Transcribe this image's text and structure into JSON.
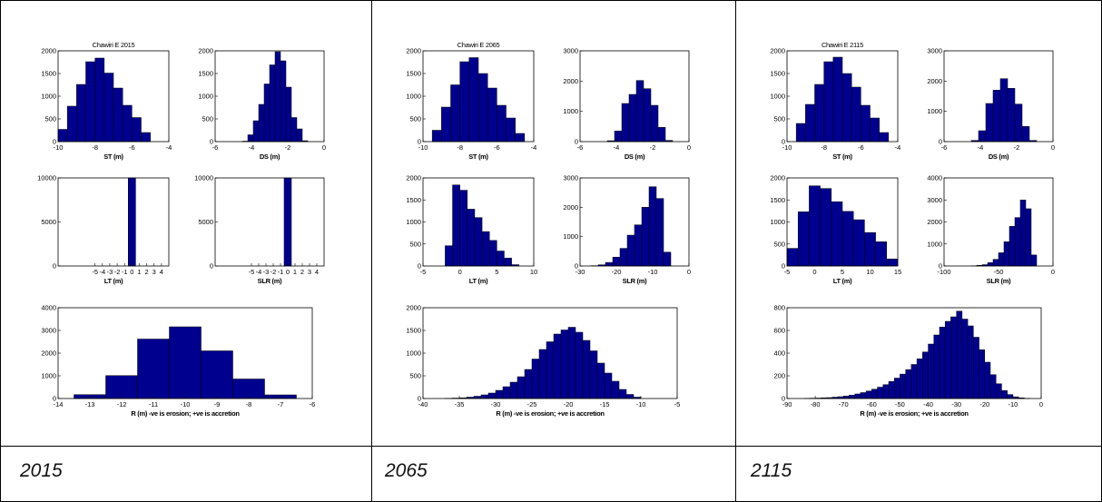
{
  "colors": {
    "bar_fill": "#00008f",
    "bar_stroke": "#000000",
    "axis": "#000000"
  },
  "captions": [
    "2015",
    "2065",
    "2115"
  ],
  "chart_data": [
    {
      "type": "bar",
      "title": "Chawiri E 2015",
      "xlabel": "ST (m)",
      "ylabel": "",
      "xlim": [
        -10,
        -4
      ],
      "ylim": [
        0,
        2000
      ],
      "xticks": [
        -10,
        -8,
        -6,
        -4
      ],
      "yticks": [
        0,
        500,
        1000,
        1500,
        2000
      ],
      "bin_edges": [
        -10,
        -9.5,
        -9,
        -8.5,
        -8,
        -7.5,
        -7,
        -6.5,
        -6,
        -5.5,
        -5
      ],
      "values": [
        270,
        780,
        1260,
        1760,
        1840,
        1510,
        1180,
        800,
        530,
        200
      ]
    },
    {
      "type": "bar",
      "title": "",
      "xlabel": "DS (m)",
      "ylabel": "",
      "xlim": [
        -6,
        0
      ],
      "ylim": [
        0,
        2000
      ],
      "xticks": [
        -6,
        -4,
        -2,
        0
      ],
      "yticks": [
        0,
        500,
        1000,
        1500,
        2000
      ],
      "bin_edges": [
        -4.5,
        -4.2,
        -3.9,
        -3.6,
        -3.3,
        -3,
        -2.7,
        -2.4,
        -2.1,
        -1.8,
        -1.5,
        -1.2,
        -0.9
      ],
      "values": [
        10,
        150,
        460,
        820,
        1270,
        1690,
        1980,
        1780,
        1200,
        530,
        280,
        20
      ]
    },
    {
      "type": "bar",
      "title": "",
      "xlabel": "LT (m)",
      "ylabel": "",
      "xlim": [
        -10,
        5
      ],
      "ylim": [
        0,
        10000
      ],
      "xticks": [
        -5,
        -4,
        -3,
        -2,
        -1,
        0,
        1,
        2,
        3,
        4
      ],
      "yticks": [
        0,
        5000,
        10000
      ],
      "tick_labels": [
        "-5",
        "-4",
        "-3",
        "-2",
        "-1",
        "0",
        "1",
        "2",
        "3",
        "4"
      ],
      "bin_edges": [
        -0.5,
        0.5
      ],
      "values": [
        10000
      ]
    },
    {
      "type": "bar",
      "title": "",
      "xlabel": "SLR (m)",
      "ylabel": "",
      "xlim": [
        -10,
        5
      ],
      "ylim": [
        0,
        10000
      ],
      "xticks": [
        -5,
        -4,
        -3,
        -2,
        -1,
        0,
        1,
        2,
        3,
        4
      ],
      "yticks": [
        0,
        5000,
        10000
      ],
      "tick_labels": [
        "-5",
        "-4",
        "-3",
        "-2",
        "-1",
        "0",
        "1",
        "2",
        "3",
        "4"
      ],
      "bin_edges": [
        -0.5,
        0.5
      ],
      "values": [
        10000
      ]
    },
    {
      "type": "bar",
      "title": "",
      "xlabel": "R (m) -ve is erosion; +ve is accretion",
      "ylabel": "",
      "xlim": [
        -14,
        -6
      ],
      "ylim": [
        0,
        4000
      ],
      "xticks": [
        -14,
        -13,
        -12,
        -11,
        -10,
        -9,
        -8,
        -7,
        -6
      ],
      "yticks": [
        0,
        1000,
        2000,
        3000,
        4000
      ],
      "bin_edges": [
        -13.5,
        -12.5,
        -11.5,
        -10.5,
        -9.5,
        -8.5,
        -7.5,
        -6.5
      ],
      "values": [
        170,
        1010,
        2620,
        3160,
        2100,
        860,
        160
      ]
    },
    {
      "type": "bar",
      "title": "Chawiri E 2065",
      "xlabel": "ST (m)",
      "ylabel": "",
      "xlim": [
        -10,
        -4
      ],
      "ylim": [
        0,
        2000
      ],
      "xticks": [
        -10,
        -8,
        -6,
        -4
      ],
      "yticks": [
        0,
        500,
        1000,
        1500,
        2000
      ],
      "bin_edges": [
        -9.5,
        -9,
        -8.5,
        -8,
        -7.5,
        -7,
        -6.5,
        -6,
        -5.5,
        -5,
        -4.5
      ],
      "values": [
        250,
        760,
        1250,
        1760,
        1850,
        1500,
        1180,
        800,
        520,
        180
      ]
    },
    {
      "type": "bar",
      "title": "",
      "xlabel": "DS (m)",
      "ylabel": "",
      "xlim": [
        -6,
        0
      ],
      "ylim": [
        0,
        3000
      ],
      "xticks": [
        -6,
        -4,
        -2,
        0
      ],
      "yticks": [
        0,
        1000,
        2000,
        3000
      ],
      "bin_edges": [
        -4.5,
        -4.1,
        -3.7,
        -3.3,
        -2.9,
        -2.5,
        -2.1,
        -1.7,
        -1.3,
        -0.9
      ],
      "values": [
        30,
        350,
        1260,
        1560,
        2020,
        1750,
        1200,
        470,
        40
      ]
    },
    {
      "type": "bar",
      "title": "",
      "xlabel": "LT (m)",
      "ylabel": "",
      "xlim": [
        -5,
        10
      ],
      "ylim": [
        0,
        2000
      ],
      "xticks": [
        -5,
        0,
        5,
        10
      ],
      "yticks": [
        0,
        500,
        1000,
        1500,
        2000
      ],
      "bin_edges": [
        -2,
        -1,
        0,
        1,
        2,
        3,
        4,
        5,
        6,
        7,
        8
      ],
      "values": [
        460,
        1840,
        1720,
        1290,
        1100,
        780,
        580,
        340,
        180,
        30
      ]
    },
    {
      "type": "bar",
      "title": "",
      "xlabel": "SLR (m)",
      "ylabel": "",
      "xlim": [
        -30,
        0
      ],
      "ylim": [
        0,
        3000
      ],
      "xticks": [
        -30,
        -20,
        -10,
        0
      ],
      "yticks": [
        0,
        1000,
        2000,
        3000
      ],
      "bin_edges": [
        -27,
        -25,
        -23,
        -21,
        -19,
        -17,
        -15,
        -13,
        -11,
        -9,
        -7,
        -5
      ],
      "values": [
        10,
        40,
        120,
        300,
        600,
        1050,
        1400,
        2000,
        2700,
        2300,
        470
      ]
    },
    {
      "type": "bar",
      "title": "",
      "xlabel": "R (m) -ve is erosion; +ve is accretion",
      "ylabel": "",
      "xlim": [
        -40,
        -5
      ],
      "ylim": [
        0,
        2000
      ],
      "xticks": [
        -40,
        -35,
        -30,
        -25,
        -20,
        -15,
        -10,
        -5
      ],
      "yticks": [
        0,
        500,
        1000,
        1500,
        2000
      ],
      "bin_edges": [
        -37,
        -36,
        -35,
        -34,
        -33,
        -32,
        -31,
        -30,
        -29,
        -28,
        -27,
        -26,
        -25,
        -24,
        -23,
        -22,
        -21,
        -20,
        -19,
        -18,
        -17,
        -16,
        -15,
        -14,
        -13,
        -12,
        -11,
        -10
      ],
      "values": [
        5,
        10,
        15,
        30,
        50,
        80,
        120,
        180,
        260,
        360,
        480,
        640,
        870,
        1080,
        1250,
        1420,
        1510,
        1570,
        1460,
        1280,
        1050,
        780,
        560,
        380,
        200,
        90,
        30
      ]
    },
    {
      "type": "bar",
      "title": "Chawiri E 2115",
      "xlabel": "ST (m)",
      "ylabel": "",
      "xlim": [
        -10,
        -4
      ],
      "ylim": [
        0,
        2000
      ],
      "xticks": [
        -10,
        -8,
        -6,
        -4
      ],
      "yticks": [
        0,
        500,
        1000,
        1500,
        2000
      ],
      "bin_edges": [
        -9.5,
        -9,
        -8.5,
        -8,
        -7.5,
        -7,
        -6.5,
        -6,
        -5.5,
        -5,
        -4.5
      ],
      "values": [
        400,
        820,
        1260,
        1760,
        1860,
        1500,
        1200,
        800,
        520,
        200
      ]
    },
    {
      "type": "bar",
      "title": "",
      "xlabel": "DS (m)",
      "ylabel": "",
      "xlim": [
        -6,
        0
      ],
      "ylim": [
        0,
        3000
      ],
      "xticks": [
        -6,
        -4,
        -2,
        0
      ],
      "yticks": [
        0,
        1000,
        2000,
        3000
      ],
      "bin_edges": [
        -4.5,
        -4.1,
        -3.7,
        -3.3,
        -2.9,
        -2.5,
        -2.1,
        -1.7,
        -1.3,
        -0.9
      ],
      "values": [
        40,
        360,
        1260,
        1700,
        2080,
        1760,
        1240,
        500,
        40
      ]
    },
    {
      "type": "bar",
      "title": "",
      "xlabel": "LT (m)",
      "ylabel": "",
      "xlim": [
        -5,
        15
      ],
      "ylim": [
        0,
        2000
      ],
      "xticks": [
        -5,
        0,
        5,
        10,
        15
      ],
      "yticks": [
        0,
        500,
        1000,
        1500,
        2000
      ],
      "bin_edges": [
        -5,
        -3,
        -1,
        1,
        3,
        5,
        7,
        9,
        11,
        13,
        15
      ],
      "values": [
        400,
        1230,
        1820,
        1760,
        1460,
        1240,
        1050,
        760,
        550,
        160
      ]
    },
    {
      "type": "bar",
      "title": "",
      "xlabel": "SLR (m)",
      "ylabel": "",
      "xlim": [
        -100,
        0
      ],
      "ylim": [
        0,
        4000
      ],
      "xticks": [
        -100,
        -50,
        0
      ],
      "yticks": [
        0,
        1000,
        2000,
        3000,
        4000
      ],
      "bin_edges": [
        -75,
        -70,
        -65,
        -60,
        -55,
        -50,
        -45,
        -40,
        -35,
        -30,
        -25,
        -20,
        -15
      ],
      "values": [
        10,
        30,
        60,
        150,
        300,
        600,
        1100,
        1800,
        2200,
        3000,
        2600,
        500
      ]
    },
    {
      "type": "bar",
      "title": "",
      "xlabel": "R (m) -ve is erosion; +ve is accretion",
      "ylabel": "",
      "xlim": [
        -90,
        0
      ],
      "ylim": [
        0,
        800
      ],
      "xticks": [
        -90,
        -80,
        -70,
        -60,
        -50,
        -40,
        -30,
        -20,
        -10,
        0
      ],
      "yticks": [
        0,
        200,
        400,
        600,
        800
      ],
      "bin_edges": [
        -84,
        -82,
        -80,
        -78,
        -76,
        -74,
        -72,
        -70,
        -68,
        -66,
        -64,
        -62,
        -60,
        -58,
        -56,
        -54,
        -52,
        -50,
        -48,
        -46,
        -44,
        -42,
        -40,
        -38,
        -36,
        -34,
        -32,
        -30,
        -28,
        -26,
        -24,
        -22,
        -20,
        -18,
        -16,
        -14,
        -12,
        -10,
        -8,
        -6,
        -4
      ],
      "values": [
        2,
        3,
        4,
        6,
        8,
        12,
        16,
        22,
        30,
        40,
        52,
        66,
        82,
        100,
        122,
        150,
        180,
        215,
        255,
        300,
        350,
        410,
        480,
        560,
        630,
        680,
        720,
        770,
        700,
        640,
        540,
        430,
        320,
        210,
        130,
        70,
        35,
        15,
        6,
        2
      ]
    }
  ]
}
